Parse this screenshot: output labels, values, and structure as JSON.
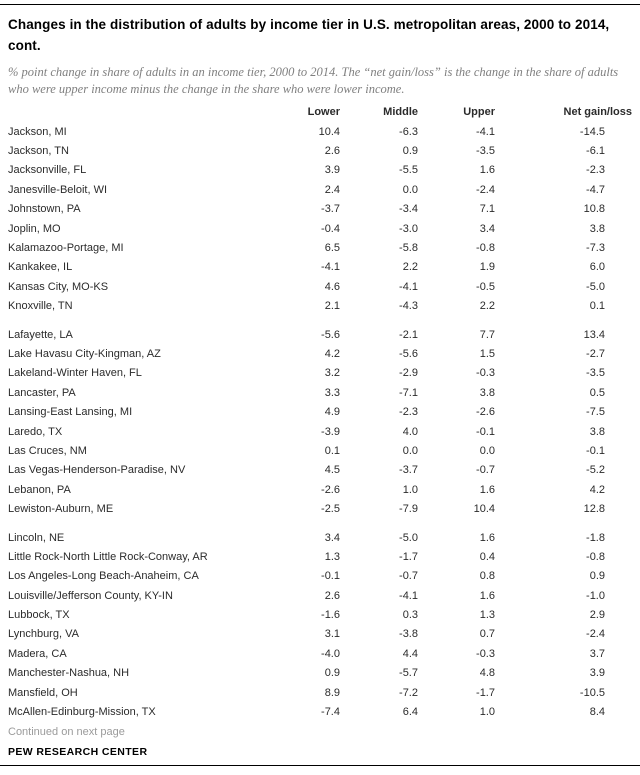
{
  "page": {
    "title": "Changes in the distribution of adults by income tier in U.S. metropolitan areas, 2000 to 2014, cont.",
    "subtitle": "% point change in share of adults in an income tier, 2000 to 2014. The “net gain/loss” is the change in the share of adults who were upper income minus the change in the share who were lower income.",
    "footer_note": "Continued on next page",
    "source": "PEW RESEARCH CENTER"
  },
  "table": {
    "columns": [
      "Lower",
      "Middle",
      "Upper",
      "Net gain/loss"
    ],
    "groups": [
      {
        "rows": [
          {
            "name": "Jackson, MI",
            "values": [
              "10.4",
              "-6.3",
              "-4.1",
              "-14.5"
            ]
          },
          {
            "name": "Jackson, TN",
            "values": [
              "2.6",
              "0.9",
              "-3.5",
              "-6.1"
            ]
          },
          {
            "name": "Jacksonville, FL",
            "values": [
              "3.9",
              "-5.5",
              "1.6",
              "-2.3"
            ]
          },
          {
            "name": "Janesville-Beloit, WI",
            "values": [
              "2.4",
              "0.0",
              "-2.4",
              "-4.7"
            ]
          },
          {
            "name": "Johnstown, PA",
            "values": [
              "-3.7",
              "-3.4",
              "7.1",
              "10.8"
            ]
          },
          {
            "name": "Joplin, MO",
            "values": [
              "-0.4",
              "-3.0",
              "3.4",
              "3.8"
            ]
          },
          {
            "name": "Kalamazoo-Portage, MI",
            "values": [
              "6.5",
              "-5.8",
              "-0.8",
              "-7.3"
            ]
          },
          {
            "name": "Kankakee, IL",
            "values": [
              "-4.1",
              "2.2",
              "1.9",
              "6.0"
            ]
          },
          {
            "name": "Kansas City, MO-KS",
            "values": [
              "4.6",
              "-4.1",
              "-0.5",
              "-5.0"
            ]
          },
          {
            "name": "Knoxville, TN",
            "values": [
              "2.1",
              "-4.3",
              "2.2",
              "0.1"
            ]
          }
        ]
      },
      {
        "rows": [
          {
            "name": "Lafayette, LA",
            "values": [
              "-5.6",
              "-2.1",
              "7.7",
              "13.4"
            ]
          },
          {
            "name": "Lake Havasu City-Kingman, AZ",
            "values": [
              "4.2",
              "-5.6",
              "1.5",
              "-2.7"
            ]
          },
          {
            "name": "Lakeland-Winter Haven, FL",
            "values": [
              "3.2",
              "-2.9",
              "-0.3",
              "-3.5"
            ]
          },
          {
            "name": "Lancaster, PA",
            "values": [
              "3.3",
              "-7.1",
              "3.8",
              "0.5"
            ]
          },
          {
            "name": "Lansing-East Lansing, MI",
            "values": [
              "4.9",
              "-2.3",
              "-2.6",
              "-7.5"
            ]
          },
          {
            "name": "Laredo, TX",
            "values": [
              "-3.9",
              "4.0",
              "-0.1",
              "3.8"
            ]
          },
          {
            "name": "Las Cruces, NM",
            "values": [
              "0.1",
              "0.0",
              "0.0",
              "-0.1"
            ]
          },
          {
            "name": "Las Vegas-Henderson-Paradise, NV",
            "values": [
              "4.5",
              "-3.7",
              "-0.7",
              "-5.2"
            ]
          },
          {
            "name": "Lebanon, PA",
            "values": [
              "-2.6",
              "1.0",
              "1.6",
              "4.2"
            ]
          },
          {
            "name": "Lewiston-Auburn, ME",
            "values": [
              "-2.5",
              "-7.9",
              "10.4",
              "12.8"
            ]
          }
        ]
      },
      {
        "rows": [
          {
            "name": "Lincoln, NE",
            "values": [
              "3.4",
              "-5.0",
              "1.6",
              "-1.8"
            ]
          },
          {
            "name": "Little Rock-North Little Rock-Conway, AR",
            "values": [
              "1.3",
              "-1.7",
              "0.4",
              "-0.8"
            ]
          },
          {
            "name": "Los Angeles-Long Beach-Anaheim, CA",
            "values": [
              "-0.1",
              "-0.7",
              "0.8",
              "0.9"
            ]
          },
          {
            "name": "Louisville/Jefferson County, KY-IN",
            "values": [
              "2.6",
              "-4.1",
              "1.6",
              "-1.0"
            ]
          },
          {
            "name": "Lubbock, TX",
            "values": [
              "-1.6",
              "0.3",
              "1.3",
              "2.9"
            ]
          },
          {
            "name": "Lynchburg, VA",
            "values": [
              "3.1",
              "-3.8",
              "0.7",
              "-2.4"
            ]
          },
          {
            "name": "Madera, CA",
            "values": [
              "-4.0",
              "4.4",
              "-0.3",
              "3.7"
            ]
          },
          {
            "name": "Manchester-Nashua, NH",
            "values": [
              "0.9",
              "-5.7",
              "4.8",
              "3.9"
            ]
          },
          {
            "name": "Mansfield, OH",
            "values": [
              "8.9",
              "-7.2",
              "-1.7",
              "-10.5"
            ]
          },
          {
            "name": "McAllen-Edinburg-Mission, TX",
            "values": [
              "-7.4",
              "6.4",
              "1.0",
              "8.4"
            ]
          }
        ]
      }
    ]
  }
}
